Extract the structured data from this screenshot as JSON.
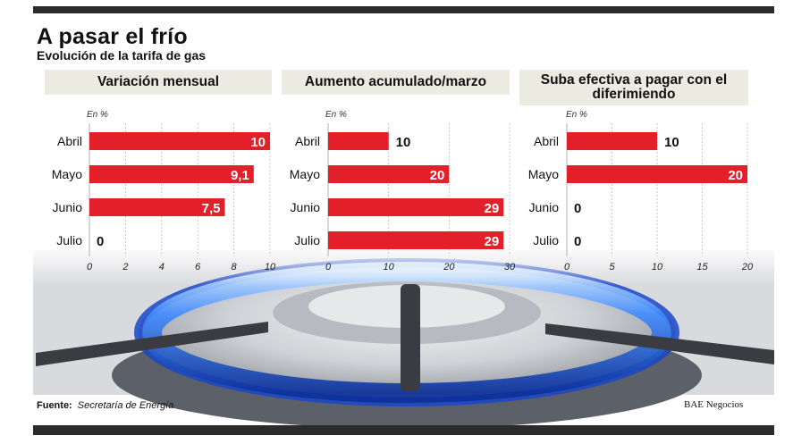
{
  "title": "A pasar el frío",
  "subtitle": "Evolución de la tarifa de gas",
  "source_label": "Fuente:",
  "source_value": "Secretaría de Energía",
  "credit": "BAE Negocios",
  "colors": {
    "bar": "#e3202a",
    "panel_header": "#ecebe1",
    "grid": "#bdbdbd"
  },
  "chart_data": [
    {
      "type": "bar",
      "orientation": "horizontal",
      "title": "Variación mensual",
      "unit_label": "En %",
      "categories": [
        "Abril",
        "Mayo",
        "Junio",
        "Julio"
      ],
      "values": [
        10,
        9.1,
        7.5,
        0
      ],
      "value_labels": [
        "10",
        "9,1",
        "7,5",
        "0"
      ],
      "xlim": [
        0,
        10
      ],
      "xticks": [
        0,
        2,
        4,
        6,
        8,
        10
      ],
      "grid": true
    },
    {
      "type": "bar",
      "orientation": "horizontal",
      "title": "Aumento acumulado/marzo",
      "unit_label": "En %",
      "categories": [
        "Abril",
        "Mayo",
        "Junio",
        "Julio"
      ],
      "values": [
        10,
        20,
        29,
        29
      ],
      "value_labels": [
        "10",
        "20",
        "29",
        "29"
      ],
      "xlim": [
        0,
        30
      ],
      "xticks": [
        0,
        10,
        20,
        30
      ],
      "grid": true
    },
    {
      "type": "bar",
      "orientation": "horizontal",
      "title": "Suba efectiva a pagar con el diferimiendo",
      "unit_label": "En %",
      "categories": [
        "Abril",
        "Mayo",
        "Junio",
        "Julio"
      ],
      "values": [
        10,
        20,
        0,
        0
      ],
      "value_labels": [
        "10",
        "20",
        "0",
        "0"
      ],
      "xlim": [
        0,
        20
      ],
      "xticks": [
        0,
        5,
        10,
        15,
        20
      ],
      "grid": true
    }
  ]
}
